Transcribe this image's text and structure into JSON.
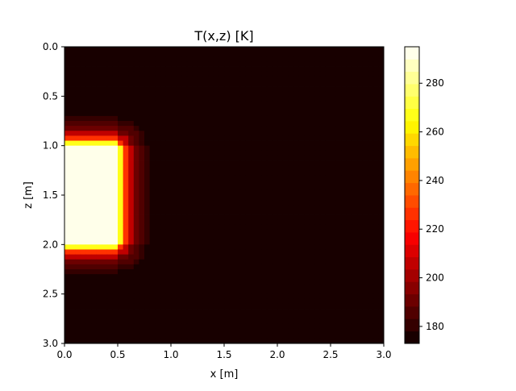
{
  "chart_data": {
    "type": "heatmap",
    "title": "T(x,z) [K]",
    "xlabel": "x [m]",
    "ylabel": "z [m]",
    "xlim": [
      0.0,
      3.0
    ],
    "ylim": [
      3.0,
      0.0
    ],
    "y_inverted": true,
    "xticks": [
      "0.0",
      "0.5",
      "1.0",
      "1.5",
      "2.0",
      "2.5",
      "3.0"
    ],
    "yticks": [
      "0.0",
      "0.5",
      "1.0",
      "1.5",
      "2.0",
      "2.5",
      "3.0"
    ],
    "colorbar": {
      "colormap": "hot",
      "min": 173,
      "max": 295,
      "levels": 24,
      "ticks": [
        "180",
        "200",
        "220",
        "240",
        "260",
        "280"
      ],
      "tick_values": [
        180,
        200,
        220,
        240,
        260,
        280
      ]
    },
    "grid": {
      "nx": 60,
      "nz": 60
    },
    "field": {
      "background_temperature": 173,
      "hot_block": {
        "x_range": [
          0.0,
          0.5
        ],
        "z_range": [
          1.0,
          2.0
        ],
        "temperature": 295
      },
      "edge_profile": [
        {
          "distance_m": 0.025,
          "temperature": 265
        },
        {
          "distance_m": 0.075,
          "temperature": 225
        },
        {
          "distance_m": 0.125,
          "temperature": 205
        },
        {
          "distance_m": 0.175,
          "temperature": 193
        },
        {
          "distance_m": 0.225,
          "temperature": 186
        },
        {
          "distance_m": 0.275,
          "temperature": 180
        },
        {
          "distance_m": 0.325,
          "temperature": 176
        },
        {
          "distance_m": 0.375,
          "temperature": 173
        }
      ]
    },
    "grid_lines": false
  }
}
